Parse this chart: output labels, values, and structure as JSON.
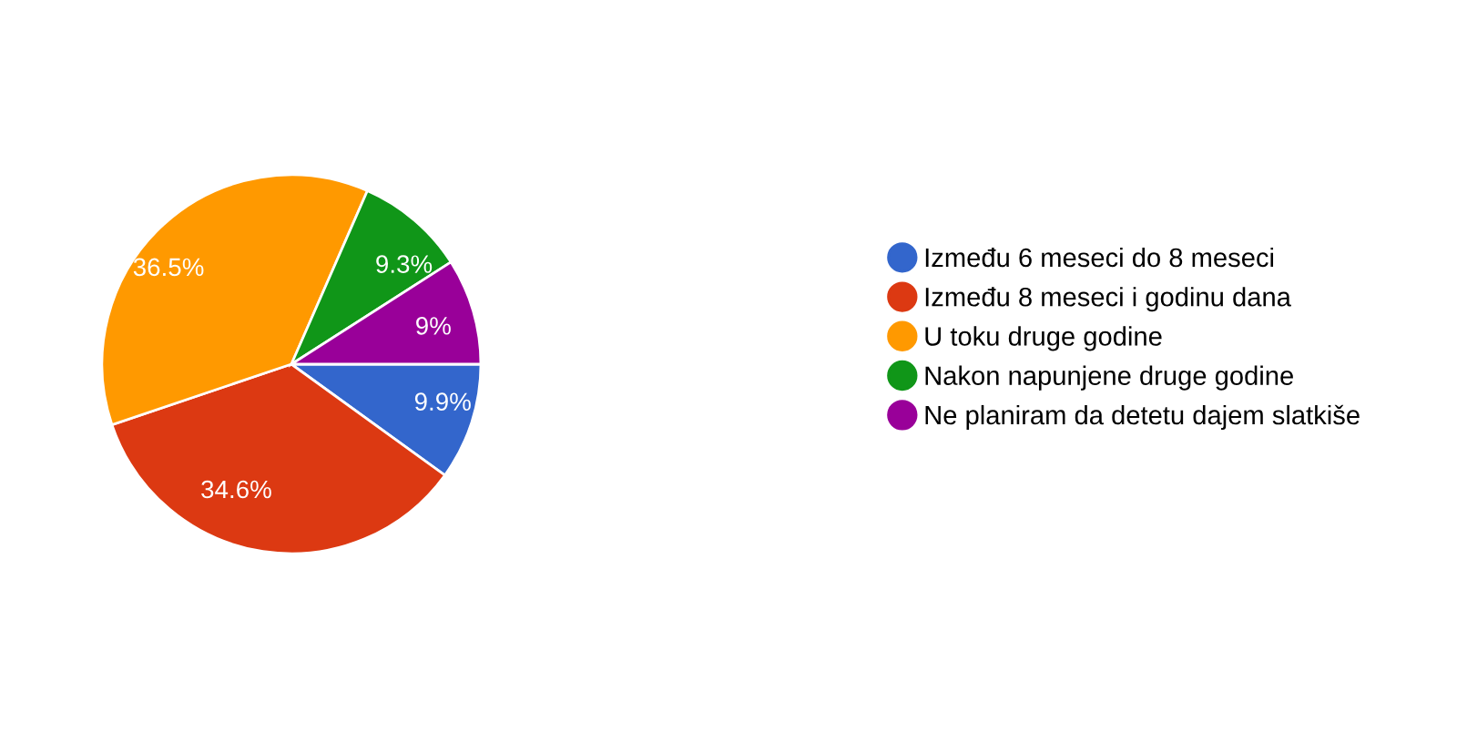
{
  "chart_data": {
    "type": "pie",
    "categories": [
      "Između 6 meseci do 8 meseci",
      "Između 8 meseci i godinu dana",
      "U toku druge godine",
      "Nakon napunjene druge godine",
      "Ne planiram da detetu dajem slatkiše"
    ],
    "values": [
      9.9,
      34.6,
      36.5,
      9.3,
      9
    ],
    "colors": [
      "#3366cc",
      "#dc3912",
      "#ff9900",
      "#109618",
      "#990099"
    ],
    "value_labels": [
      "9.9%",
      "34.6%",
      "36.5%",
      "9.3%",
      "9%"
    ],
    "legend": "right"
  }
}
